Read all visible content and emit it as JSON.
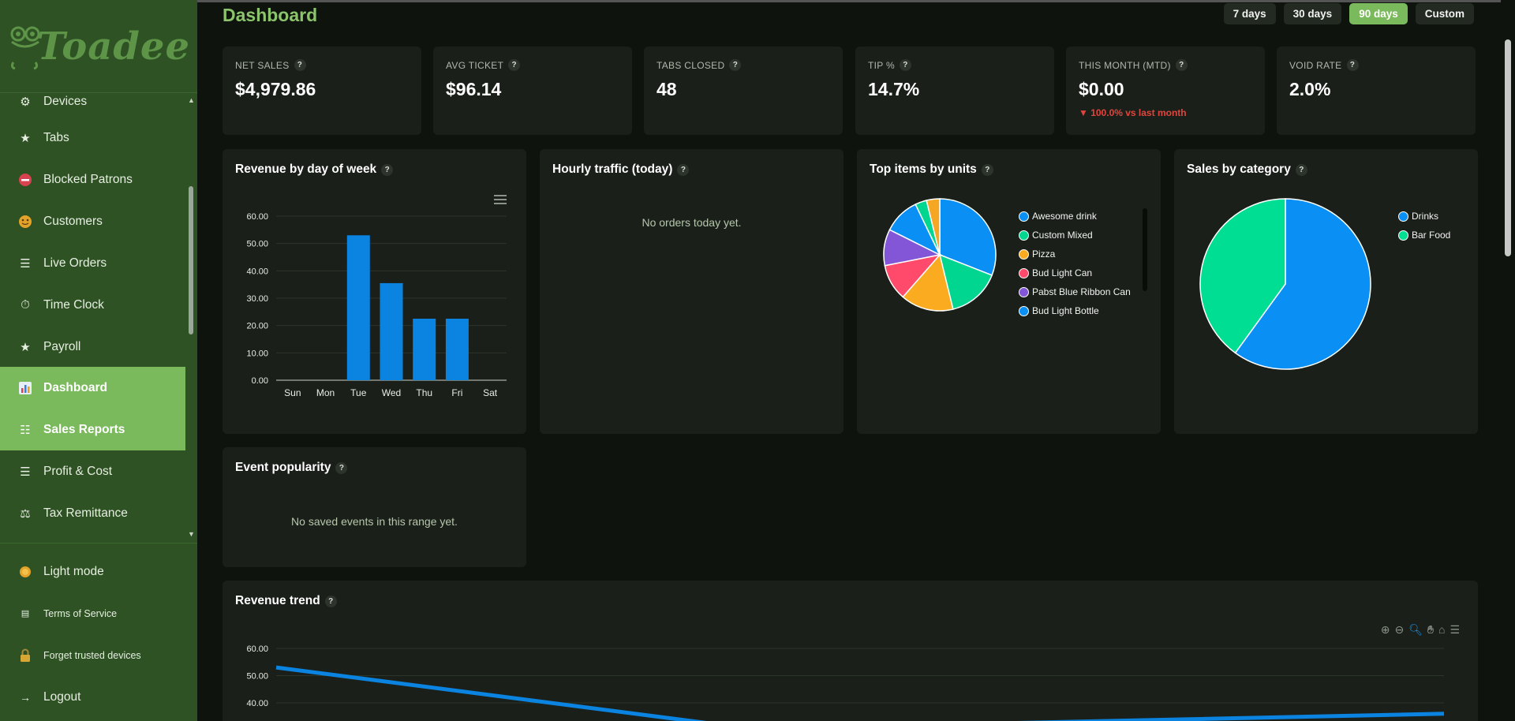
{
  "sidebar": {
    "logo": "Toadee",
    "items": [
      {
        "label": "Devices",
        "icon": "gear-icon"
      },
      {
        "label": "Tabs",
        "icon": "star-icon"
      },
      {
        "label": "Blocked Patrons",
        "icon": "no-entry-icon"
      },
      {
        "label": "Customers",
        "icon": "face-icon"
      },
      {
        "label": "Live Orders",
        "icon": "list-icon"
      },
      {
        "label": "Time Clock",
        "icon": "stopwatch-icon"
      },
      {
        "label": "Payroll",
        "icon": "star-icon"
      },
      {
        "label": "Dashboard",
        "icon": "bar-chart-icon",
        "active": true
      },
      {
        "label": "Sales Reports",
        "icon": "report-icon",
        "active": true
      },
      {
        "label": "Profit & Cost",
        "icon": "list-icon"
      },
      {
        "label": "Tax Remittance",
        "icon": "scales-icon"
      }
    ],
    "bottom": [
      {
        "label": "Light mode",
        "icon": "sun-icon"
      },
      {
        "label": "Terms of Service",
        "icon": "document-icon"
      },
      {
        "label": "Forget trusted devices",
        "icon": "lock-icon"
      },
      {
        "label": "Logout",
        "icon": "logout-arrow-icon"
      }
    ]
  },
  "header": {
    "title": "Dashboard",
    "ranges": [
      "7 days",
      "30 days",
      "90 days",
      "Custom"
    ],
    "active_range": "90 days"
  },
  "kpis": [
    {
      "label": "NET SALES",
      "value": "$4,979.86"
    },
    {
      "label": "AVG TICKET",
      "value": "$96.14"
    },
    {
      "label": "TABS CLOSED",
      "value": "48"
    },
    {
      "label": "TIP %",
      "value": "14.7%"
    },
    {
      "label": "THIS MONTH (MTD)",
      "value": "$0.00",
      "delta": "▼ 100.0% vs last month"
    },
    {
      "label": "VOID RATE",
      "value": "2.0%"
    }
  ],
  "cards": {
    "revenue_dow": {
      "title": "Revenue by day of week"
    },
    "hourly": {
      "title": "Hourly traffic (today)",
      "empty": "No orders today yet."
    },
    "top_items": {
      "title": "Top items by units"
    },
    "sales_cat": {
      "title": "Sales by category"
    },
    "events": {
      "title": "Event popularity",
      "empty": "No saved events in this range yet."
    },
    "trend": {
      "title": "Revenue trend"
    }
  },
  "help_glyph": "?",
  "chart_data": [
    {
      "type": "bar",
      "title": "Revenue by day of week",
      "categories": [
        "Sun",
        "Mon",
        "Tue",
        "Wed",
        "Thu",
        "Fri",
        "Sat"
      ],
      "values": [
        0,
        0,
        53,
        35.5,
        22.5,
        22.5,
        0
      ],
      "ylim": [
        0,
        60
      ],
      "yticks": [
        "0.00",
        "10.00",
        "20.00",
        "30.00",
        "40.00",
        "50.00",
        "60.00"
      ],
      "color": "#0a84e0",
      "grid": true
    },
    {
      "type": "pie",
      "title": "Top items by units",
      "labels": [
        "Awesome drink",
        "Custom Mixed",
        "Pizza",
        "Bud Light Can",
        "Pabst Blue Ribbon Can",
        "Bud Light Bottle"
      ],
      "values": [
        32.5,
        16,
        16,
        11,
        11,
        11
      ],
      "hidden_tail": [
        {
          "color": "#00d68f",
          "value": 3.5
        },
        {
          "color": "#f5a623",
          "value": 4
        }
      ],
      "colors": [
        "#0a8ff5",
        "#00d68f",
        "#fbab20",
        "#ff4a6b",
        "#8256d6",
        "#0a8ff5"
      ],
      "legend": "right"
    },
    {
      "type": "pie",
      "title": "Sales by category",
      "labels": [
        "Drinks",
        "Bar Food"
      ],
      "values": [
        60,
        40
      ],
      "colors": [
        "#0a8ff5",
        "#00de93"
      ],
      "legend": "right"
    },
    {
      "type": "line",
      "title": "Revenue trend",
      "ylim": [
        0,
        60
      ],
      "yticks": [
        "40.00",
        "50.00",
        "60.00"
      ],
      "series": [
        {
          "values": [
            53,
            30.5,
            36
          ]
        }
      ],
      "color": "#0a84e0"
    }
  ]
}
